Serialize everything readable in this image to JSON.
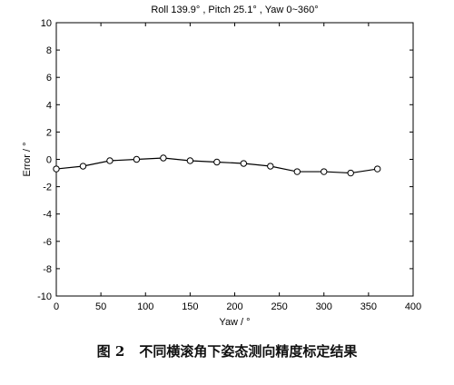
{
  "chart_data": {
    "type": "line",
    "title": "Roll 139.9° , Pitch 25.1° , Yaw 0~360°",
    "xlabel": "Yaw / °",
    "ylabel": "Error / °",
    "xlim": [
      0,
      400
    ],
    "ylim": [
      -10,
      10
    ],
    "xticks": [
      0,
      50,
      100,
      150,
      200,
      250,
      300,
      350,
      400
    ],
    "yticks": [
      -10,
      -8,
      -6,
      -4,
      -2,
      0,
      2,
      4,
      6,
      8,
      10
    ],
    "grid": false,
    "marker": "circle",
    "series": [
      {
        "x": [
          0,
          30,
          60,
          90,
          120,
          150,
          180,
          210,
          240,
          270,
          300,
          330,
          360
        ],
        "y": [
          -0.7,
          -0.5,
          -0.1,
          0.0,
          0.1,
          -0.1,
          -0.2,
          -0.3,
          -0.5,
          -0.9,
          -0.9,
          -1.0,
          -0.7
        ]
      }
    ]
  },
  "caption": {
    "figure_number": "图 2",
    "text": "不同横滚角下姿态测向精度标定结果"
  }
}
